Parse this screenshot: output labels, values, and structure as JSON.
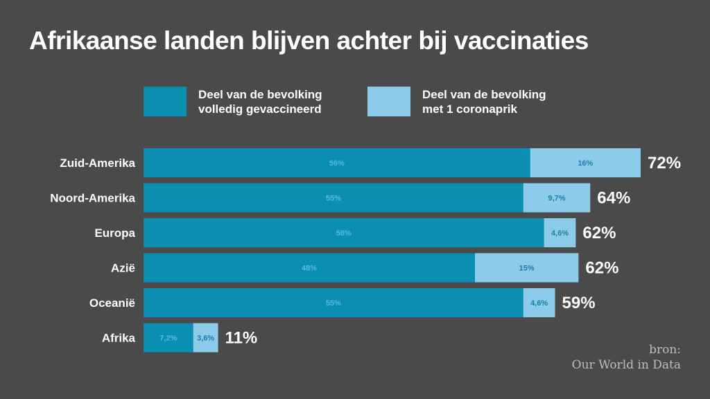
{
  "title": "Afrikaanse landen blijven achter bij vaccinaties",
  "legend": [
    {
      "label_line1": "Deel van de bevolking",
      "label_line2": "volledig gevaccineerd",
      "color": "#0a8fb3"
    },
    {
      "label_line1": "Deel van de bevolking",
      "label_line2": "met 1 coronaprik",
      "color": "#8ccbea"
    }
  ],
  "source": {
    "line1": "bron:",
    "line2": "Our World in Data"
  },
  "colors": {
    "background": "#4a4a4a",
    "full": "#0a8fb3",
    "partial": "#8ccbea",
    "segment_label": "#5bb8d9",
    "partial_label": "#1a7fa6"
  },
  "chart_data": {
    "type": "bar",
    "orientation": "horizontal",
    "stacked": true,
    "unit": "%",
    "categories": [
      "Zuid-Amerika",
      "Noord-Amerika",
      "Europa",
      "Azië",
      "Oceanië",
      "Afrika"
    ],
    "series": [
      {
        "name": "Deel van de bevolking volledig gevaccineerd",
        "values": [
          56,
          55,
          58,
          48,
          55,
          7.2
        ],
        "labels": [
          "56%",
          "55%",
          "58%",
          "48%",
          "55%",
          "7,2%"
        ]
      },
      {
        "name": "Deel van de bevolking met 1 coronaprik",
        "values": [
          16,
          9.7,
          4.6,
          15,
          4.6,
          3.6
        ],
        "labels": [
          "16%",
          "9,7%",
          "4,6%",
          "15%",
          "4,6%",
          "3,6%"
        ]
      }
    ],
    "totals": [
      "72%",
      "64%",
      "62%",
      "62%",
      "59%",
      "11%"
    ],
    "xlim": [
      0,
      72
    ]
  }
}
